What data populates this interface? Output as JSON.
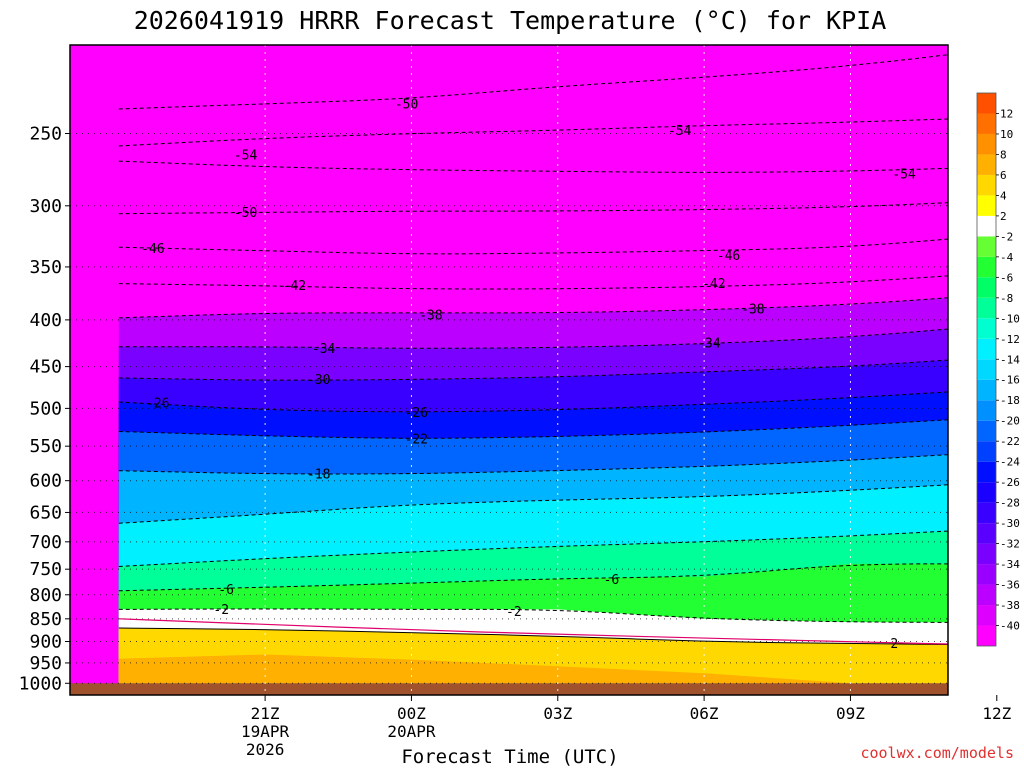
{
  "page": {
    "title": "2026041919 HRRR Forecast Temperature (°C) for KPIA",
    "credit": "coolwx.com/models"
  },
  "chart_data": {
    "type": "heatmap",
    "title": "2026041919 HRRR Forecast Temperature (°C) for KPIA",
    "xlabel": "Forecast Time (UTC)",
    "ylabel": "",
    "x_unit": "hours from 19Z 19 Apr 2026",
    "xlim": [
      -2,
      16
    ],
    "ylim": [
      1030,
      200
    ],
    "y_scale": "log",
    "grid": true,
    "legend": "right (vertical colorbar)",
    "y_ticks": [
      250,
      300,
      350,
      400,
      450,
      500,
      550,
      600,
      650,
      700,
      750,
      800,
      850,
      900,
      950,
      1000
    ],
    "x_ticks": [
      {
        "x": 2,
        "label": "21Z",
        "sub": [
          "19APR",
          "2026"
        ]
      },
      {
        "x": 5,
        "label": "00Z",
        "sub": [
          "20APR"
        ]
      },
      {
        "x": 8,
        "label": "03Z",
        "sub": []
      },
      {
        "x": 11,
        "label": "06Z",
        "sub": []
      },
      {
        "x": 14,
        "label": "09Z",
        "sub": []
      },
      {
        "x": 17,
        "label": "12Z",
        "sub": []
      }
    ],
    "colorbar": {
      "levels": [
        -40,
        -38,
        -36,
        -34,
        -32,
        -30,
        -28,
        -26,
        -24,
        -22,
        -20,
        -18,
        -16,
        -14,
        -12,
        -10,
        -8,
        -6,
        -4,
        -2,
        2,
        4,
        6,
        8,
        10,
        12
      ],
      "colors": [
        "#ff00ff",
        "#dd00ff",
        "#bb00ff",
        "#9900ff",
        "#7a00ff",
        "#5a00ff",
        "#3a00ff",
        "#1a00ff",
        "#0010ff",
        "#0040ff",
        "#0066ff",
        "#0090ff",
        "#00b4ff",
        "#00d8ff",
        "#00f0ff",
        "#00ffd0",
        "#00ff99",
        "#00ff66",
        "#22ff33",
        "#66ff33",
        "#ffffff",
        "#ffff00",
        "#ffd800",
        "#ffb000",
        "#ff9000",
        "#ff7000",
        "#ff5000"
      ]
    },
    "columns_x": [
      -1,
      2,
      5,
      8,
      11,
      14,
      17
    ],
    "contours": [
      {
        "label": "-50",
        "p": [
          235,
          232,
          229,
          222,
          217,
          211,
          202
        ]
      },
      {
        "label": "-54",
        "p": [
          258,
          253,
          250,
          248,
          245,
          243,
          240
        ]
      },
      {
        "label": "-54",
        "p": [
          268,
          272,
          274,
          275,
          276,
          275,
          272
        ]
      },
      {
        "label": "-50",
        "p": [
          306,
          305,
          304,
          304,
          303,
          301,
          296
        ]
      },
      {
        "label": "-46",
        "p": [
          333,
          336,
          339,
          338,
          336,
          333,
          323
        ]
      },
      {
        "label": "-42",
        "p": [
          365,
          367,
          370,
          370,
          368,
          364,
          355
        ]
      },
      {
        "label": "-38",
        "p": [
          398,
          393,
          393,
          393,
          390,
          385,
          375
        ]
      },
      {
        "label": "-34",
        "p": [
          428,
          428,
          430,
          429,
          425,
          418,
          405
        ]
      },
      {
        "label": "-30",
        "p": [
          463,
          466,
          465,
          462,
          456,
          450,
          439
        ]
      },
      {
        "label": "-26",
        "p": [
          492,
          502,
          505,
          502,
          495,
          487,
          476
        ]
      },
      {
        "label": "-22",
        "p": [
          530,
          536,
          540,
          537,
          531,
          522,
          511
        ]
      },
      {
        "label": "-18",
        "p": [
          585,
          590,
          590,
          585,
          579,
          570,
          558
        ]
      },
      {
        "label": "-14",
        "p": [
          668,
          653,
          637,
          630,
          625,
          615,
          602
        ]
      },
      {
        "label": "-10",
        "p": [
          745,
          730,
          718,
          708,
          700,
          690,
          677
        ]
      },
      {
        "label": "-6",
        "p": [
          792,
          785,
          777,
          768,
          764,
          740,
          740
        ]
      },
      {
        "label": "-2",
        "p": [
          830,
          829,
          830,
          830,
          850,
          857,
          858
        ]
      },
      {
        "label": "2",
        "p": [
          870,
          873,
          880,
          888,
          900,
          905,
          908
        ]
      }
    ],
    "labels": [
      {
        "text": "-50",
        "x": 4.9,
        "p": 232
      },
      {
        "text": "-54",
        "x": 10.5,
        "p": 248
      },
      {
        "text": "-54",
        "x": 1.6,
        "p": 264
      },
      {
        "text": "-54",
        "x": 15.1,
        "p": 277
      },
      {
        "text": "-50",
        "x": 1.6,
        "p": 305
      },
      {
        "text": "-46",
        "x": -0.3,
        "p": 334
      },
      {
        "text": "-46",
        "x": 11.5,
        "p": 340
      },
      {
        "text": "-42",
        "x": 2.6,
        "p": 367
      },
      {
        "text": "-42",
        "x": 11.2,
        "p": 365
      },
      {
        "text": "-38",
        "x": 5.4,
        "p": 395
      },
      {
        "text": "-38",
        "x": 12.0,
        "p": 389
      },
      {
        "text": "-34",
        "x": 3.2,
        "p": 430
      },
      {
        "text": "-34",
        "x": 11.1,
        "p": 424
      },
      {
        "text": "-30",
        "x": 3.1,
        "p": 465
      },
      {
        "text": "-26",
        "x": -0.2,
        "p": 493
      },
      {
        "text": "-26",
        "x": 5.1,
        "p": 505
      },
      {
        "text": "-22",
        "x": 5.1,
        "p": 540
      },
      {
        "text": "-18",
        "x": 3.1,
        "p": 590
      },
      {
        "text": "-6",
        "x": 1.2,
        "p": 789
      },
      {
        "text": "-6",
        "x": 9.1,
        "p": 770
      },
      {
        "text": "-2",
        "x": 1.1,
        "p": 830
      },
      {
        "text": "-2",
        "x": 7.1,
        "p": 834
      },
      {
        "text": "2",
        "x": 14.9,
        "p": 904
      }
    ],
    "freezing_line": {
      "color": "#e0006a",
      "p": [
        850,
        862,
        874,
        884,
        892,
        901,
        908
      ]
    },
    "warm_regions": [
      {
        "value": 4,
        "top": [
          900,
          890,
          898,
          905,
          920,
          925,
          926
        ],
        "bottom": [
          1030,
          1030,
          1030,
          1030,
          1030,
          1030,
          1030
        ]
      },
      {
        "value": 6,
        "top": [
          940,
          930,
          942,
          958,
          975,
          1000,
          1030
        ],
        "bottom": [
          1030,
          1030,
          1030,
          1030,
          1030,
          1030,
          1030
        ]
      }
    ],
    "surface": {
      "color": "#a0522d",
      "p": 1000
    }
  }
}
